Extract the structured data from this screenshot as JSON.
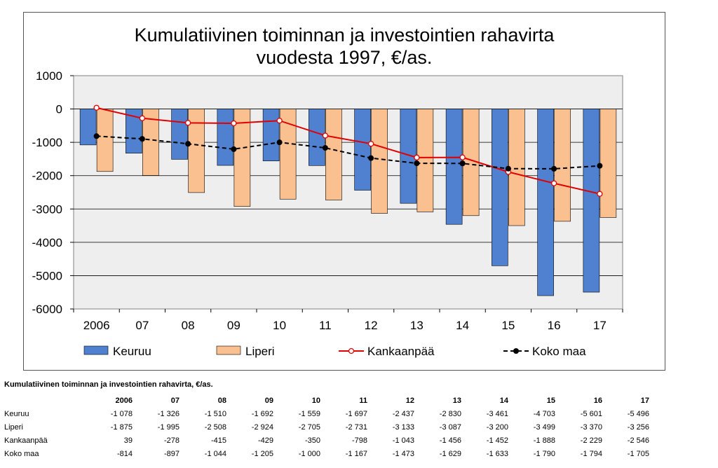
{
  "chart_data": {
    "type": "bar",
    "title_lines": [
      "Kumulatiivinen toiminnan ja investointien rahavirta",
      "vuodesta 1997, €/as."
    ],
    "categories": [
      "2006",
      "07",
      "08",
      "09",
      "10",
      "11",
      "12",
      "13",
      "14",
      "15",
      "16",
      "17"
    ],
    "y_ticks": [
      "1000",
      "0",
      "-1000",
      "-2000",
      "-3000",
      "-4000",
      "-5000",
      "-6000"
    ],
    "ylim": [
      -6000,
      1000
    ],
    "grid": true,
    "legend_position": "bottom",
    "series": [
      {
        "name": "Keuruu",
        "kind": "bar",
        "color": "#4f81d0",
        "values": [
          -1078,
          -1326,
          -1510,
          -1692,
          -1559,
          -1697,
          -2437,
          -2830,
          -3461,
          -4703,
          -5601,
          -5496
        ]
      },
      {
        "name": "Liperi",
        "kind": "bar",
        "color": "#fac090",
        "values": [
          -1875,
          -1995,
          -2508,
          -2924,
          -2705,
          -2731,
          -3133,
          -3087,
          -3200,
          -3499,
          -3370,
          -3256
        ]
      },
      {
        "name": "Kankaanpää",
        "kind": "line",
        "color": "#e00000",
        "marker": "open-circle",
        "values": [
          39,
          -278,
          -415,
          -429,
          -350,
          -798,
          -1043,
          -1456,
          -1452,
          -1888,
          -2229,
          -2546
        ]
      },
      {
        "name": "Koko maa",
        "kind": "line",
        "color": "#000000",
        "marker": "filled-circle",
        "dashed": true,
        "values": [
          -814,
          -897,
          -1044,
          -1205,
          -1000,
          -1167,
          -1473,
          -1629,
          -1633,
          -1790,
          -1794,
          -1705
        ]
      }
    ]
  },
  "table": {
    "title": "Kumulatiivinen toiminnan ja investointien rahavirta, €/as.",
    "headers": [
      "2006",
      "07",
      "08",
      "09",
      "10",
      "11",
      "12",
      "13",
      "14",
      "15",
      "16",
      "17"
    ],
    "rows": [
      {
        "label": "Keuruu",
        "values": [
          "-1 078",
          "-1 326",
          "-1 510",
          "-1 692",
          "-1 559",
          "-1 697",
          "-2 437",
          "-2 830",
          "-3 461",
          "-4 703",
          "-5 601",
          "-5 496"
        ]
      },
      {
        "label": "Liperi",
        "values": [
          "-1 875",
          "-1 995",
          "-2 508",
          "-2 924",
          "-2 705",
          "-2 731",
          "-3 133",
          "-3 087",
          "-3 200",
          "-3 499",
          "-3 370",
          "-3 256"
        ]
      },
      {
        "label": "Kankaanpää",
        "values": [
          "39",
          "-278",
          "-415",
          "-429",
          "-350",
          "-798",
          "-1 043",
          "-1 456",
          "-1 452",
          "-1 888",
          "-2 229",
          "-2 546"
        ]
      },
      {
        "label": "Koko maa",
        "values": [
          "-814",
          "-897",
          "-1 044",
          "-1 205",
          "-1 000",
          "-1 167",
          "-1 473",
          "-1 629",
          "-1 633",
          "-1 790",
          "-1 794",
          "-1 705"
        ]
      }
    ]
  }
}
